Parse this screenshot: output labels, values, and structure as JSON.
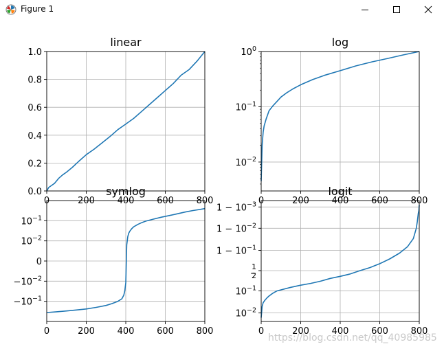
{
  "window": {
    "title": "Figure 1",
    "background": "#ffffff"
  },
  "watermark": "https://blog.csdn.net/qq_40985985",
  "style": {
    "line_color": "#1f77b4",
    "grid_color": "#b0b0b0"
  },
  "chart_data": [
    {
      "type": "line",
      "title": "linear",
      "yscale": "linear",
      "grid": true,
      "xlim": [
        0,
        800
      ],
      "ylim": [
        0.0,
        1.0
      ],
      "x": [
        0,
        10,
        25,
        40,
        60,
        80,
        100,
        130,
        160,
        200,
        240,
        280,
        320,
        360,
        400,
        440,
        480,
        520,
        560,
        600,
        640,
        680,
        720,
        760,
        800
      ],
      "y": [
        0.0,
        0.025,
        0.04,
        0.055,
        0.09,
        0.115,
        0.135,
        0.17,
        0.21,
        0.26,
        0.3,
        0.345,
        0.39,
        0.44,
        0.48,
        0.52,
        0.57,
        0.62,
        0.67,
        0.72,
        0.77,
        0.83,
        0.87,
        0.93,
        1.0
      ],
      "xticks": [
        "0",
        "200",
        "400",
        "600",
        "800"
      ],
      "xtick_values": [
        0,
        200,
        400,
        600,
        800
      ],
      "yticks": [
        "0.0",
        "0.2",
        "0.4",
        "0.6",
        "0.8",
        "1.0"
      ],
      "ytick_values": [
        0.0,
        0.2,
        0.4,
        0.6,
        0.8,
        1.0
      ]
    },
    {
      "type": "line",
      "title": "log",
      "yscale": "log",
      "grid": true,
      "xlim": [
        0,
        800
      ],
      "ylim": [
        0.003,
        1.0
      ],
      "x": [
        0,
        5,
        10,
        15,
        25,
        40,
        60,
        80,
        100,
        130,
        160,
        200,
        260,
        320,
        400,
        480,
        560,
        640,
        720,
        800
      ],
      "y": [
        0.0045,
        0.02,
        0.035,
        0.045,
        0.06,
        0.085,
        0.105,
        0.125,
        0.15,
        0.18,
        0.21,
        0.25,
        0.31,
        0.37,
        0.45,
        0.55,
        0.65,
        0.75,
        0.87,
        1.0
      ],
      "xticks": [
        "0",
        "200",
        "400",
        "600",
        "800"
      ],
      "xtick_values": [
        0,
        200,
        400,
        600,
        800
      ],
      "yticks": [
        "10^-2",
        "10^-1",
        "10^0"
      ],
      "ytick_values": [
        0.01,
        0.1,
        1.0
      ]
    },
    {
      "type": "line",
      "title": "symlog",
      "yscale": "symlog",
      "grid": true,
      "xlim": [
        0,
        800
      ],
      "ylim": [
        -1.0,
        1.0
      ],
      "x": [
        0,
        50,
        100,
        150,
        200,
        250,
        300,
        330,
        360,
        380,
        390,
        395,
        400,
        405,
        410,
        415,
        420,
        430,
        440,
        460,
        480,
        500,
        540,
        580,
        620,
        660,
        700,
        740,
        780,
        800
      ],
      "y": [
        -0.36,
        -0.33,
        -0.3,
        -0.27,
        -0.24,
        -0.2,
        -0.16,
        -0.13,
        -0.1,
        -0.075,
        -0.05,
        -0.03,
        -0.012,
        0.008,
        0.016,
        0.024,
        0.03,
        0.04,
        0.05,
        0.065,
        0.08,
        0.095,
        0.12,
        0.15,
        0.18,
        0.22,
        0.27,
        0.32,
        0.37,
        0.4
      ],
      "xticks": [
        "0",
        "200",
        "400",
        "600",
        "800"
      ],
      "xtick_values": [
        0,
        200,
        400,
        600,
        800
      ],
      "yticks": [
        "10^-1",
        "10^-2",
        "0",
        "−10^-2",
        "−10^-1"
      ],
      "ytick_values": [
        0.1,
        0.01,
        0,
        -0.01,
        -0.1
      ]
    },
    {
      "type": "line",
      "title": "logit",
      "yscale": "logit",
      "grid": true,
      "xlim": [
        0,
        800
      ],
      "ylim": [
        0.004,
        0.9995
      ],
      "x": [
        0,
        5,
        10,
        20,
        30,
        40,
        50,
        60,
        80,
        100,
        150,
        200,
        250,
        300,
        350,
        400,
        450,
        500,
        550,
        600,
        650,
        700,
        740,
        770,
        785,
        790,
        795,
        798,
        800
      ],
      "y": [
        0.006,
        0.02,
        0.03,
        0.04,
        0.05,
        0.06,
        0.07,
        0.08,
        0.1,
        0.11,
        0.14,
        0.17,
        0.2,
        0.24,
        0.3,
        0.35,
        0.41,
        0.5,
        0.58,
        0.68,
        0.78,
        0.87,
        0.93,
        0.97,
        0.99,
        0.995,
        0.998,
        0.9985,
        0.9992
      ],
      "xticks": [
        "0",
        "200",
        "400",
        "600",
        "800"
      ],
      "xtick_values": [
        0,
        200,
        400,
        600,
        800
      ],
      "yticks": [
        "1 − 10^-3",
        "1 − 10^-2",
        "1 − 10^-1",
        "1/2",
        "10^-1",
        "10^-2"
      ],
      "ytick_values": [
        0.999,
        0.99,
        0.9,
        0.5,
        0.1,
        0.01
      ]
    }
  ]
}
